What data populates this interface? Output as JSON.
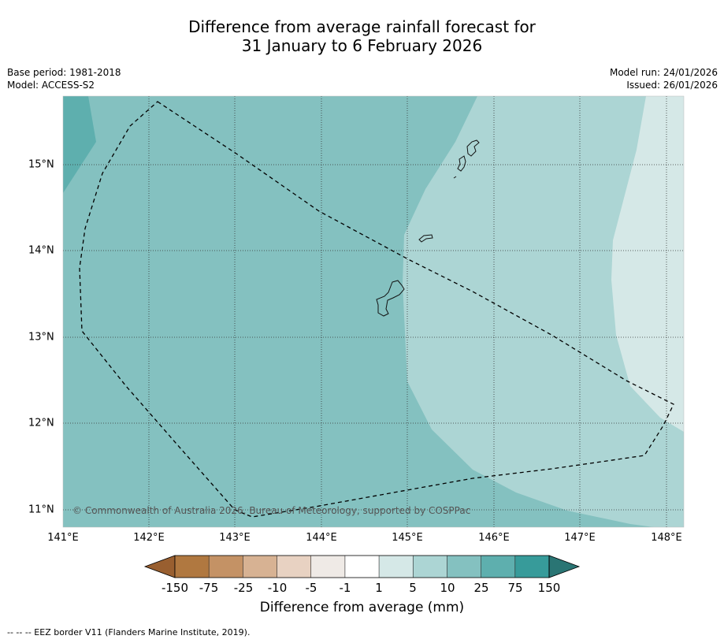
{
  "title": {
    "line1": "Difference from average rainfall forecast for",
    "line2": "31 January to 6 February 2026"
  },
  "meta": {
    "base_period": "Base period: 1981-2018",
    "model": "Model: ACCESS-S2",
    "model_run": "Model run: 24/01/2026",
    "issued": "Issued: 26/01/2026"
  },
  "map": {
    "copyright": "© Commonwealth of Australia 2026, Bureau of Meteorology, supported by COSPPac",
    "lon_ticks": [
      "141°E",
      "142°E",
      "143°E",
      "144°E",
      "145°E",
      "146°E",
      "147°E",
      "148°E"
    ],
    "lat_ticks": [
      "15°N",
      "14°N",
      "13°N",
      "12°N",
      "11°N"
    ]
  },
  "colorbar": {
    "title": "Difference from average (mm)",
    "labels": [
      "-150",
      "-75",
      "-25",
      "-10",
      "-5",
      "-1",
      "1",
      "5",
      "10",
      "25",
      "75",
      "150"
    ],
    "colors": [
      "#995f30",
      "#b07840",
      "#c49265",
      "#d7b293",
      "#e8d2c2",
      "#efeae6",
      "#ffffff",
      "#d5e8e7",
      "#acd5d4",
      "#84c1c0",
      "#5eafae",
      "#379b9a",
      "#2a7574"
    ]
  },
  "legend": {
    "footer": "--  --  -- EEZ border V11 (Flanders Marine Institute, 2019)."
  }
}
